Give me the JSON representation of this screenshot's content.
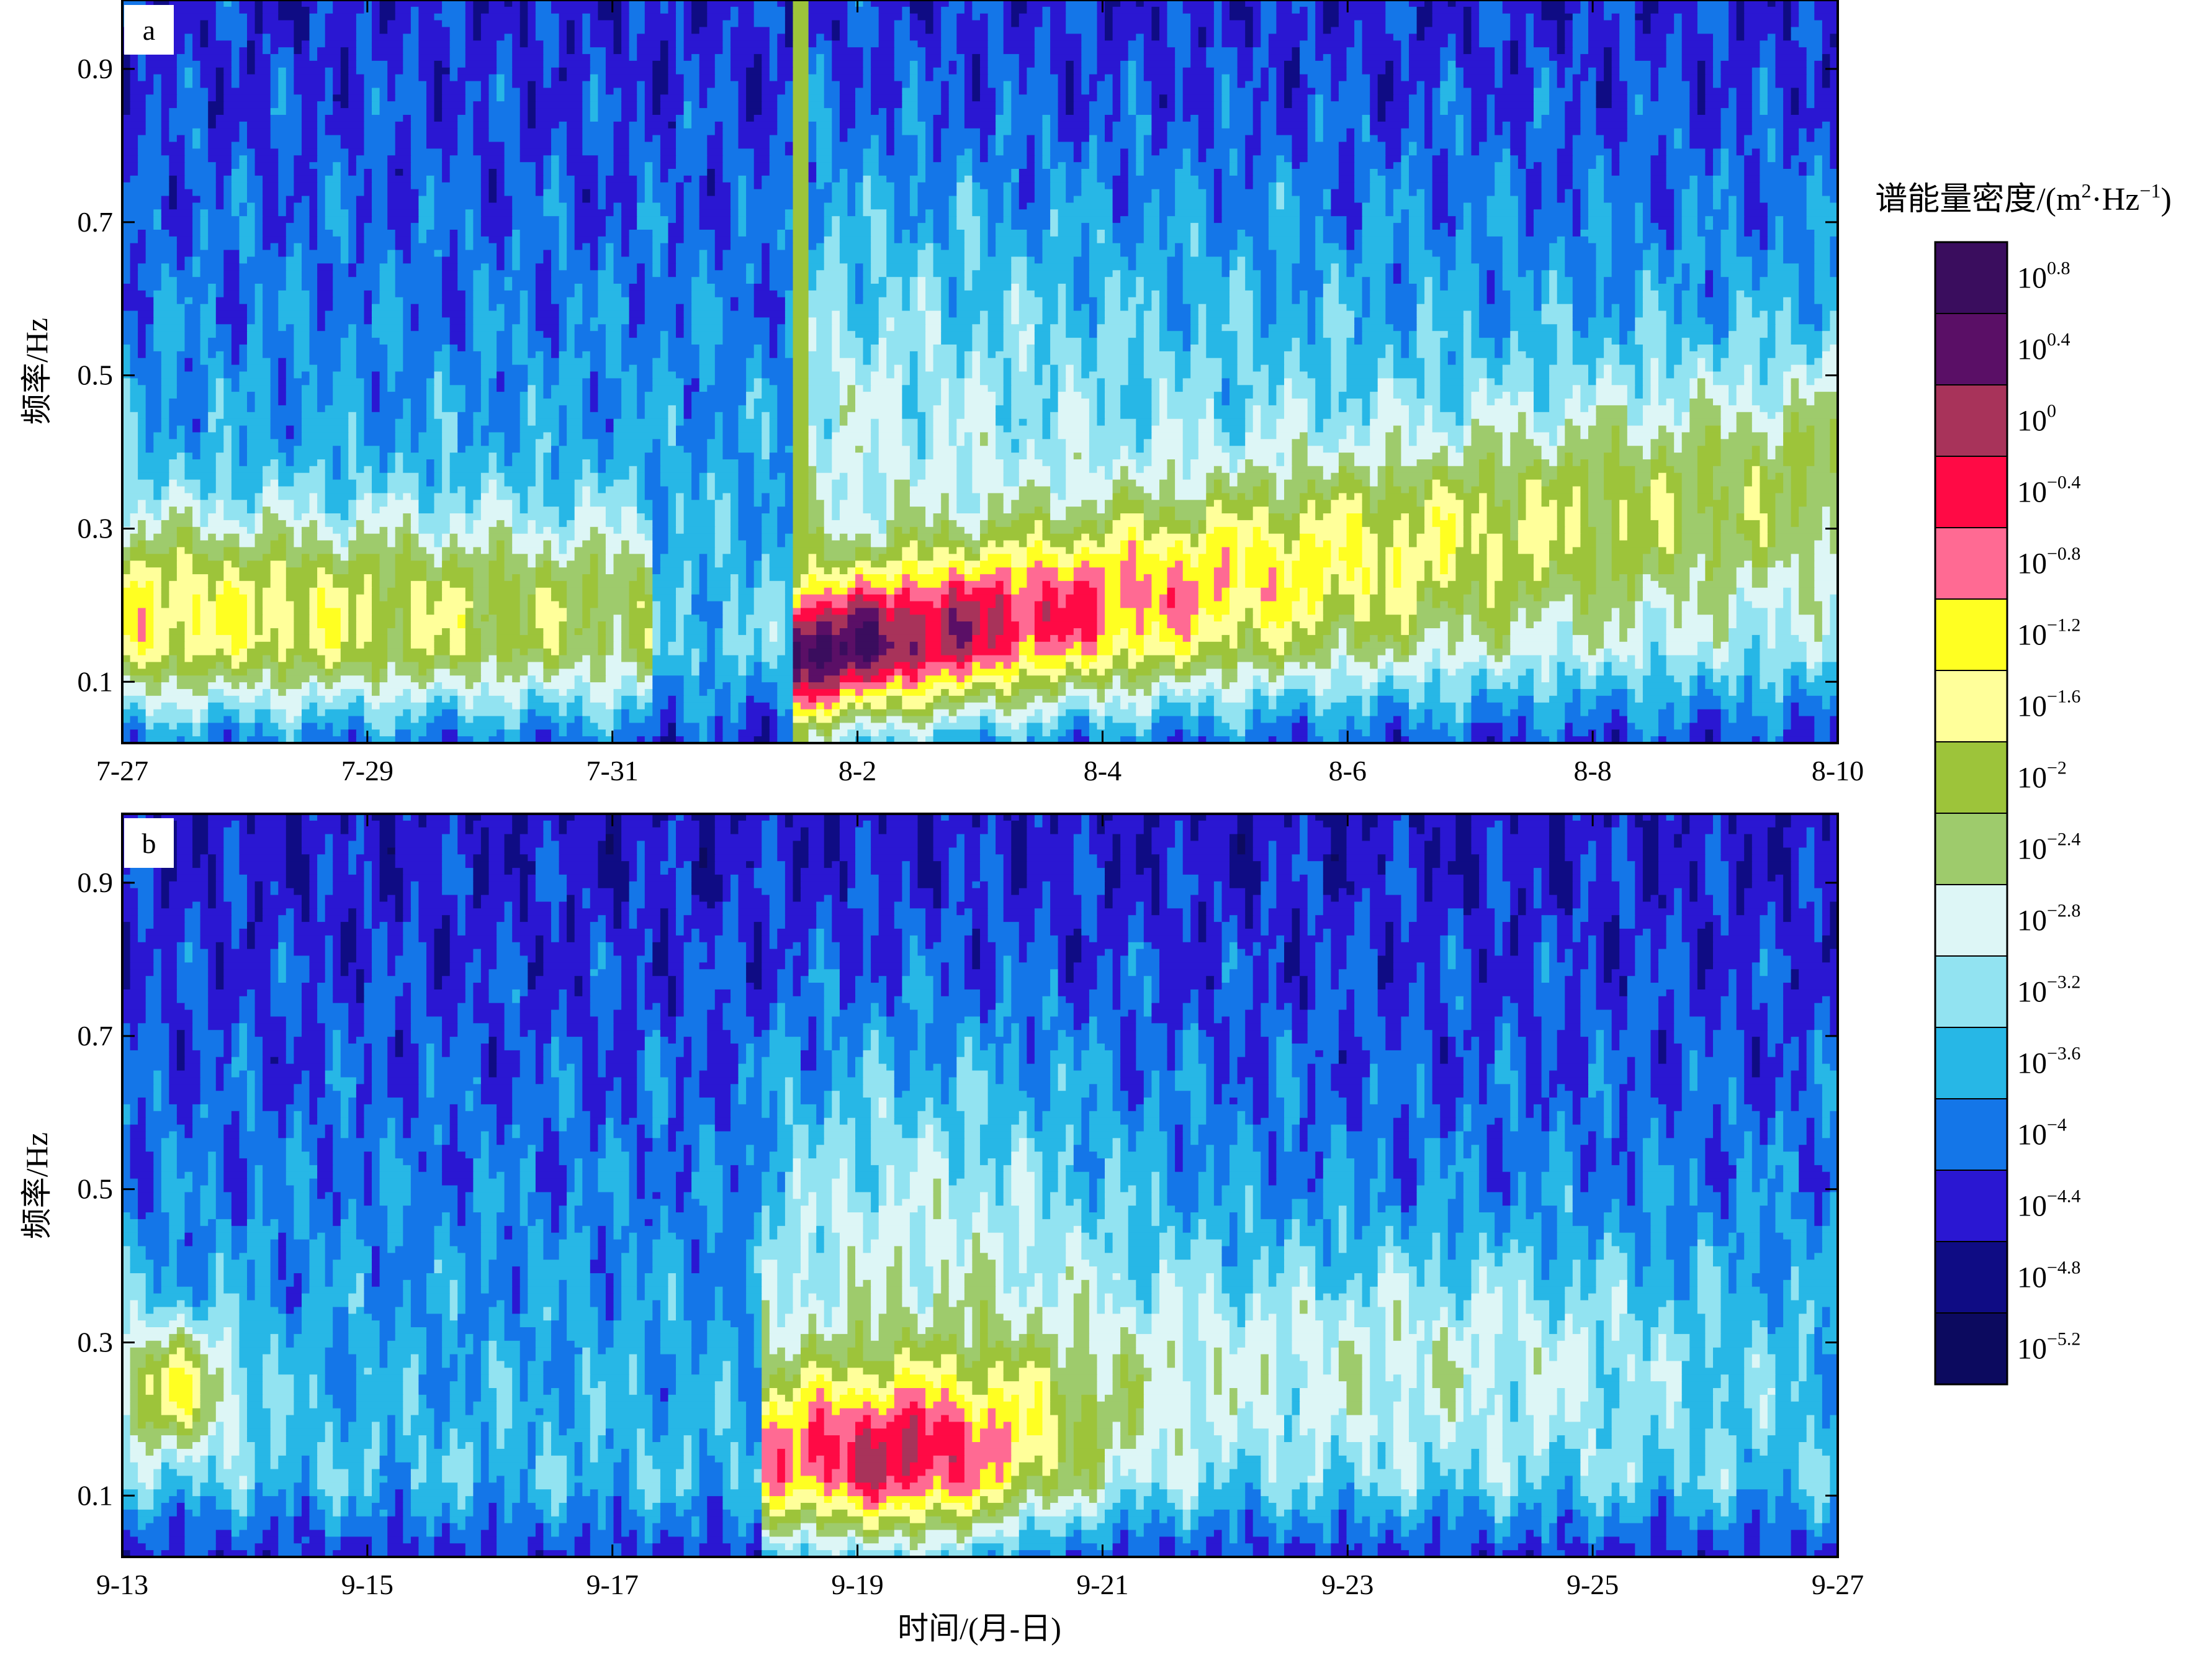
{
  "chart_data": [
    {
      "type": "heatmap",
      "panel_label": "a",
      "ylabel": "频率/Hz",
      "yticks": [
        "0.1",
        "0.3",
        "0.5",
        "0.7",
        "0.9"
      ],
      "yticks_values": [
        0.1,
        0.3,
        0.5,
        0.7,
        0.9
      ],
      "ylim": [
        0.02,
        0.99
      ],
      "xticks": [
        "7-27",
        "7-29",
        "7-31",
        "8-2",
        "8-4",
        "8-6",
        "8-8",
        "8-10"
      ],
      "xlim_days": [
        0,
        14
      ],
      "storm_onset_day": 5.55,
      "peak_log10_density": -0.2,
      "peak": {
        "day": 5.8,
        "freq": 0.14
      },
      "secondary_peaks": [
        {
          "day": 6.4,
          "freq": 0.14,
          "log10_density": -0.5
        },
        {
          "day": 7.4,
          "freq": 0.15,
          "log10_density": -0.6
        },
        {
          "day": 10.6,
          "freq": 0.2,
          "log10_density": -0.9
        },
        {
          "day": 1.5,
          "freq": 0.19,
          "log10_density": -0.9
        }
      ]
    },
    {
      "type": "heatmap",
      "panel_label": "b",
      "xlabel": "时间/(月-日)",
      "ylabel": "频率/Hz",
      "yticks": [
        "0.1",
        "0.3",
        "0.5",
        "0.7",
        "0.9"
      ],
      "yticks_values": [
        0.1,
        0.3,
        0.5,
        0.7,
        0.9
      ],
      "ylim": [
        0.02,
        0.99
      ],
      "xticks": [
        "9-13",
        "9-15",
        "9-17",
        "9-19",
        "9-21",
        "9-23",
        "9-25",
        "9-27"
      ],
      "xlim_days": [
        0,
        14
      ],
      "storm_onset_day": 5.2,
      "peak_log10_density": -0.3,
      "peak": {
        "day": 6.2,
        "freq": 0.12
      },
      "secondary_peaks": [
        {
          "day": 0.4,
          "freq": 0.24,
          "log10_density": -1.0
        }
      ]
    }
  ],
  "colorbar": {
    "label": "谱能量密度/(m²·Hz⁻¹)",
    "label_main": "谱能量密度/(m",
    "label_sup1": "2",
    "label_mid": "·Hz",
    "label_sup2": "−1",
    "label_end": ")",
    "levels": [
      0.8,
      0.4,
      0,
      -0.4,
      -0.8,
      -1.2,
      -1.6,
      -2,
      -2.4,
      -2.8,
      -3.2,
      -3.6,
      -4,
      -4.4,
      -4.8,
      -5.2
    ],
    "tick_base": "10",
    "tick_exponents": [
      "0.8",
      "0.4",
      "0",
      "−0.4",
      "−0.8",
      "−1.2",
      "−1.6",
      "−2",
      "−2.4",
      "−2.8",
      "−3.2",
      "−3.6",
      "−4",
      "−4.4",
      "−4.8",
      "−5.2"
    ],
    "colors": [
      "#3a0d5e",
      "#5a0f66",
      "#a8335a",
      "#ff0a45",
      "#ff6a93",
      "#ffff22",
      "#ffff9a",
      "#9dc43a",
      "#9ecb6c",
      "#ddf6f6",
      "#92e3f1",
      "#27b7e6",
      "#1476e8",
      "#2a17d2",
      "#0f0c84",
      "#0c0a5f"
    ]
  }
}
